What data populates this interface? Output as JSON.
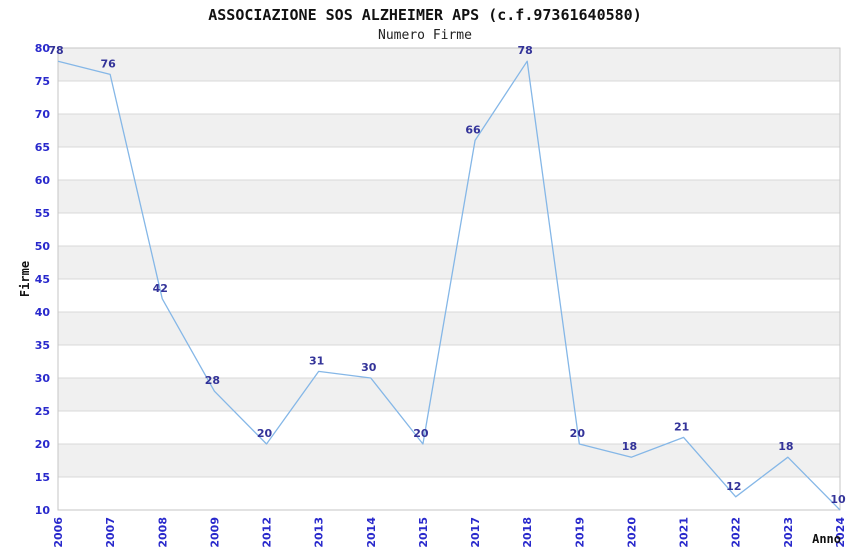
{
  "header": {
    "title": "ASSOCIAZIONE SOS ALZHEIMER APS (c.f.97361640580)",
    "subtitle": "Numero Firme"
  },
  "chart_data": {
    "type": "line",
    "title": "ASSOCIAZIONE SOS ALZHEIMER APS (c.f.97361640580)",
    "subtitle": "Numero Firme",
    "xlabel": "Anno",
    "ylabel": "Firme",
    "categories": [
      "2006",
      "2007",
      "2008",
      "2009",
      "2012",
      "2013",
      "2014",
      "2015",
      "2017",
      "2018",
      "2019",
      "2020",
      "2021",
      "2022",
      "2023",
      "2024"
    ],
    "values": [
      78,
      76,
      42,
      28,
      20,
      31,
      30,
      20,
      66,
      78,
      20,
      18,
      21,
      12,
      18,
      10
    ],
    "ylim": [
      10,
      80
    ],
    "ytick_step": 5,
    "grid": true,
    "legend": "none",
    "band_fill": "alternating",
    "colors": {
      "line": "#85b7e7",
      "point_label": "#333399",
      "tick_label": "#2929cc",
      "band": "#f0f0f0",
      "gridline": "#d9d9d9",
      "border": "#c6c6c6",
      "title": "#111111"
    }
  }
}
